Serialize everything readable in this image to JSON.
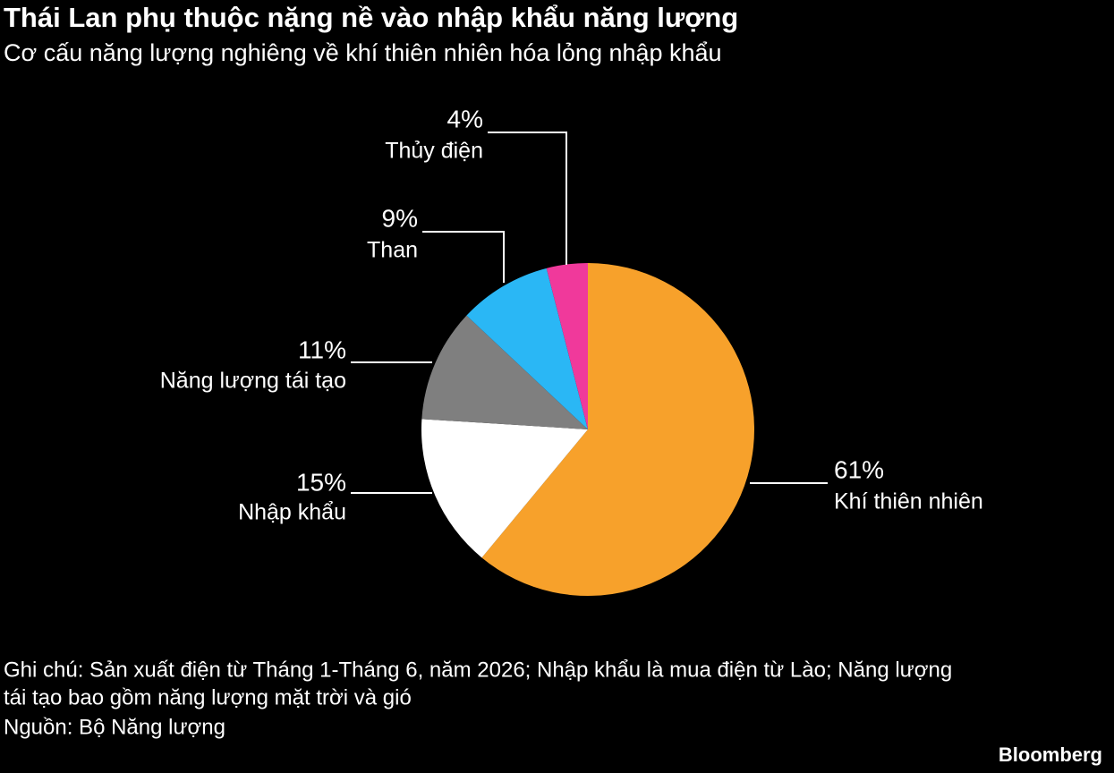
{
  "chart_data": {
    "type": "pie",
    "title": "Thái Lan phụ thuộc nặng nề vào nhập khẩu năng lượng",
    "subtitle": "Cơ cấu năng lượng nghiêng về khí thiên nhiên hóa lỏng nhập khẩu",
    "categories": [
      "Khí thiên nhiên",
      "Nhập khẩu",
      "Năng lượng tái tạo",
      "Than",
      "Thủy điện"
    ],
    "values": [
      61,
      15,
      11,
      9,
      4
    ],
    "value_labels": [
      "61%",
      "15%",
      "11%",
      "9%",
      "4%"
    ],
    "colors": [
      "#f7a12b",
      "#ffffff",
      "#7f7f7f",
      "#2ab7f5",
      "#f0399b"
    ],
    "note": [
      "Ghi chú: Sản xuất điện từ Tháng 1-Tháng 6, năm 2026; Nhập khẩu là mua điện từ Lào; Năng lượng",
      "tái tạo bao gồm năng lượng mặt trời và gió"
    ],
    "source": "Nguồn: Bộ Năng lượng",
    "brand": "Bloomberg"
  }
}
